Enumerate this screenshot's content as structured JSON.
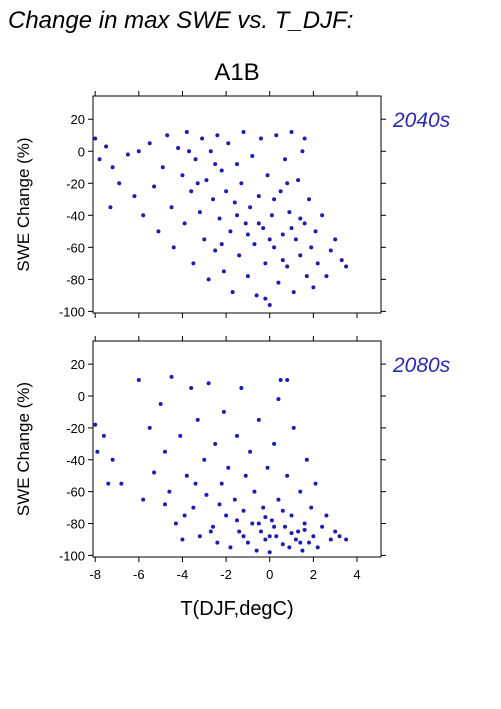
{
  "title": "Change in max SWE vs. T_DJF:",
  "subtitle": "A1B",
  "x_label": "T(DJF,degC)",
  "chart_data": [
    {
      "type": "scatter",
      "label": "2040s",
      "y_label": "SWE Change (%)",
      "color": "#1c1cb4",
      "label_color": "#2a2ab0",
      "xlim": [
        -8.1,
        5.1
      ],
      "ylim": [
        -101,
        34.5
      ],
      "xticks": [
        -8,
        -6,
        -4,
        -2,
        0,
        2,
        4
      ],
      "yticks": [
        -100,
        -80,
        -60,
        -40,
        -20,
        0,
        20
      ],
      "show_xtick_labels": false,
      "x": [
        -8,
        -7.8,
        -7.5,
        -7.3,
        -7.2,
        -6.9,
        -6.5,
        -6.2,
        -6.0,
        -5.8,
        -5.5,
        -5.3,
        -5.1,
        -4.9,
        -4.7,
        -4.5,
        -4.4,
        -4.2,
        -4.0,
        -3.9,
        -3.8,
        -3.6,
        -3.5,
        -3.4,
        -3.2,
        -3.1,
        -3.0,
        -2.9,
        -2.8,
        -2.7,
        -2.6,
        -2.5,
        -2.4,
        -2.3,
        -2.2,
        -2.1,
        -2.0,
        -1.9,
        -1.8,
        -1.7,
        -1.6,
        -1.5,
        -1.4,
        -1.3,
        -1.2,
        -1.1,
        -1.0,
        -0.9,
        -0.8,
        -0.7,
        -0.6,
        -0.5,
        -0.4,
        -0.3,
        -0.2,
        -0.1,
        0.0,
        0.1,
        0.2,
        0.3,
        0.4,
        0.5,
        0.6,
        0.7,
        0.8,
        0.9,
        1.0,
        1.1,
        1.2,
        1.3,
        1.4,
        1.5,
        1.6,
        1.7,
        1.8,
        1.9,
        2.0,
        2.1,
        2.2,
        2.4,
        2.6,
        2.8,
        3.0,
        3.3,
        3.5,
        -3.3,
        -2.2,
        -1.0,
        0.2,
        1.0,
        -0.5,
        0.6,
        -1.5,
        1.4,
        -2.5,
        0.0,
        -0.2,
        0.8,
        1.6,
        -3.7
      ],
      "values": [
        8,
        -5,
        3,
        -35,
        -10,
        -20,
        -2,
        -28,
        0,
        -40,
        5,
        -22,
        -50,
        -10,
        10,
        -35,
        -60,
        2,
        -15,
        -45,
        12,
        -25,
        -70,
        -5,
        -38,
        8,
        -55,
        -18,
        -80,
        0,
        -30,
        -62,
        10,
        -42,
        -12,
        -75,
        -25,
        5,
        -50,
        -88,
        -32,
        -8,
        -65,
        -20,
        12,
        -45,
        -78,
        -35,
        -3,
        -58,
        -90,
        -28,
        8,
        -48,
        -70,
        -15,
        -96,
        -40,
        -60,
        10,
        -82,
        -25,
        -52,
        -5,
        -72,
        -38,
        12,
        -88,
        -55,
        -18,
        -65,
        0,
        -45,
        -78,
        -30,
        -60,
        -85,
        -50,
        -70,
        -40,
        -78,
        -62,
        -55,
        -68,
        -72,
        -20,
        -58,
        -52,
        -30,
        -48,
        -45,
        -68,
        -40,
        -42,
        -8,
        -55,
        -92,
        -20,
        8,
        0
      ]
    },
    {
      "type": "scatter",
      "label": "2080s",
      "y_label": "SWE Change (%)",
      "color": "#1c1cb4",
      "label_color": "#2a2ab0",
      "xlim": [
        -8.1,
        5.1
      ],
      "ylim": [
        -101,
        34.5
      ],
      "xticks": [
        -8,
        -6,
        -4,
        -2,
        0,
        2,
        4
      ],
      "yticks": [
        -100,
        -80,
        -60,
        -40,
        -20,
        0,
        20
      ],
      "show_xtick_labels": true,
      "x": [
        -8,
        -7.9,
        -7.6,
        -7.4,
        -7.2,
        -6.8,
        -6.0,
        -5.8,
        -5.5,
        -5.3,
        -5.0,
        -4.8,
        -4.6,
        -4.5,
        -4.3,
        -4.1,
        -4.0,
        -3.8,
        -3.6,
        -3.5,
        -3.3,
        -3.2,
        -3.0,
        -2.9,
        -2.8,
        -2.6,
        -2.5,
        -2.4,
        -2.2,
        -2.1,
        -2.0,
        -1.9,
        -1.8,
        -1.6,
        -1.5,
        -1.4,
        -1.3,
        -1.2,
        -1.1,
        -1.0,
        -0.9,
        -0.8,
        -0.7,
        -0.6,
        -0.5,
        -0.4,
        -0.3,
        -0.2,
        -0.1,
        0.0,
        0.1,
        0.2,
        0.3,
        0.4,
        0.5,
        0.6,
        0.7,
        0.8,
        0.9,
        1.0,
        1.1,
        1.2,
        1.3,
        1.4,
        1.5,
        1.6,
        1.7,
        1.8,
        1.9,
        2.0,
        2.1,
        2.2,
        2.4,
        2.6,
        2.8,
        3.0,
        3.2,
        3.5,
        -3.4,
        -2.3,
        -1.2,
        0.2,
        1.0,
        -0.5,
        0.6,
        -1.5,
        1.4,
        -2.7,
        0.0,
        -0.2,
        0.8,
        1.6,
        -3.9,
        -4.8,
        0.4
      ],
      "values": [
        -18,
        -35,
        -25,
        -55,
        -40,
        -55,
        10,
        -65,
        -20,
        -48,
        -5,
        -35,
        -60,
        12,
        -80,
        -25,
        -90,
        -50,
        5,
        -70,
        -15,
        -88,
        -40,
        -62,
        8,
        -82,
        -30,
        -92,
        -55,
        -10,
        -75,
        -45,
        -95,
        -65,
        -25,
        -85,
        5,
        -72,
        -50,
        -92,
        -35,
        -80,
        -60,
        -97,
        -15,
        -85,
        -70,
        -90,
        -45,
        -98,
        -78,
        -30,
        -88,
        -65,
        10,
        -93,
        -82,
        -50,
        -95,
        -75,
        -20,
        -90,
        -85,
        -60,
        -97,
        -80,
        -40,
        -92,
        -70,
        -88,
        -55,
        -95,
        -82,
        -75,
        -90,
        -85,
        -88,
        -90,
        -55,
        -68,
        -88,
        -82,
        -86,
        -80,
        -72,
        -78,
        -92,
        -85,
        -88,
        -76,
        10,
        -84,
        -75,
        -68,
        -2
      ]
    }
  ]
}
